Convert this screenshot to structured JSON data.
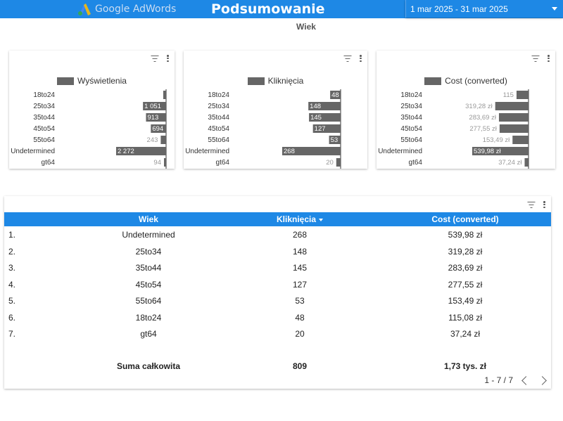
{
  "header": {
    "logo_text": "Google AdWords",
    "title": "Podsumowanie",
    "date_range": "1 mar 2025 - 31 mar 2025"
  },
  "section_title": "Wiek",
  "colors": {
    "header_blue": "#1e88e5",
    "bar_gray": "#666666"
  },
  "icons": [
    "filter-icon",
    "kebab-menu-icon",
    "chevron-left-icon",
    "chevron-right-icon",
    "dropdown-arrow-icon"
  ],
  "chart_data": [
    {
      "type": "bar",
      "orientation": "horizontal",
      "categories": [
        "18to24",
        "25to34",
        "35to44",
        "45to54",
        "55to64",
        "Undetermined",
        "gt64"
      ],
      "series": [
        {
          "name": "Wyświetlenia",
          "values": [
            130,
            1051,
            913,
            694,
            243,
            2272,
            94
          ]
        }
      ],
      "value_labels": [
        "",
        "1 051",
        "913",
        "694",
        "243",
        "2 272",
        "94"
      ],
      "xlim": [
        0,
        2272
      ]
    },
    {
      "type": "bar",
      "orientation": "horizontal",
      "categories": [
        "18to24",
        "25to34",
        "35to44",
        "45to54",
        "55to64",
        "Undetermined",
        "gt64"
      ],
      "series": [
        {
          "name": "Kliknięcia",
          "values": [
            48,
            148,
            145,
            127,
            53,
            268,
            20
          ]
        }
      ],
      "value_labels": [
        "48",
        "148",
        "145",
        "127",
        "53",
        "268",
        "20"
      ],
      "xlim": [
        0,
        268
      ]
    },
    {
      "type": "bar",
      "orientation": "horizontal",
      "categories": [
        "18to24",
        "25to34",
        "35to44",
        "45to54",
        "55to64",
        "Undetermined",
        "gt64"
      ],
      "series": [
        {
          "name": "Cost (converted)",
          "values": [
            115.08,
            319.28,
            283.69,
            277.55,
            153.49,
            539.98,
            37.24
          ]
        }
      ],
      "value_labels": [
        "115",
        "319,28 zł",
        "283,69 zł",
        "277,55 zł",
        "153,49 zł",
        "539,98 zł",
        "37,24 zł"
      ],
      "xlim": [
        0,
        539.98
      ]
    }
  ],
  "table": {
    "columns": [
      "Wiek",
      "Kliknięcia",
      "Cost (converted)"
    ],
    "rows": [
      {
        "idx": "1.",
        "age": "Undetermined",
        "clicks": "268",
        "cost": "539,98 zł"
      },
      {
        "idx": "2.",
        "age": "25to34",
        "clicks": "148",
        "cost": "319,28 zł"
      },
      {
        "idx": "3.",
        "age": "35to44",
        "clicks": "145",
        "cost": "283,69 zł"
      },
      {
        "idx": "4.",
        "age": "45to54",
        "clicks": "127",
        "cost": "277,55 zł"
      },
      {
        "idx": "5.",
        "age": "55to64",
        "clicks": "53",
        "cost": "153,49 zł"
      },
      {
        "idx": "6.",
        "age": "18to24",
        "clicks": "48",
        "cost": "115,08 zł"
      },
      {
        "idx": "7.",
        "age": "gt64",
        "clicks": "20",
        "cost": "37,24 zł"
      }
    ],
    "total": {
      "label": "Suma całkowita",
      "clicks": "809",
      "cost": "1,73 tys. zł"
    },
    "pagination": "1 - 7 / 7"
  }
}
